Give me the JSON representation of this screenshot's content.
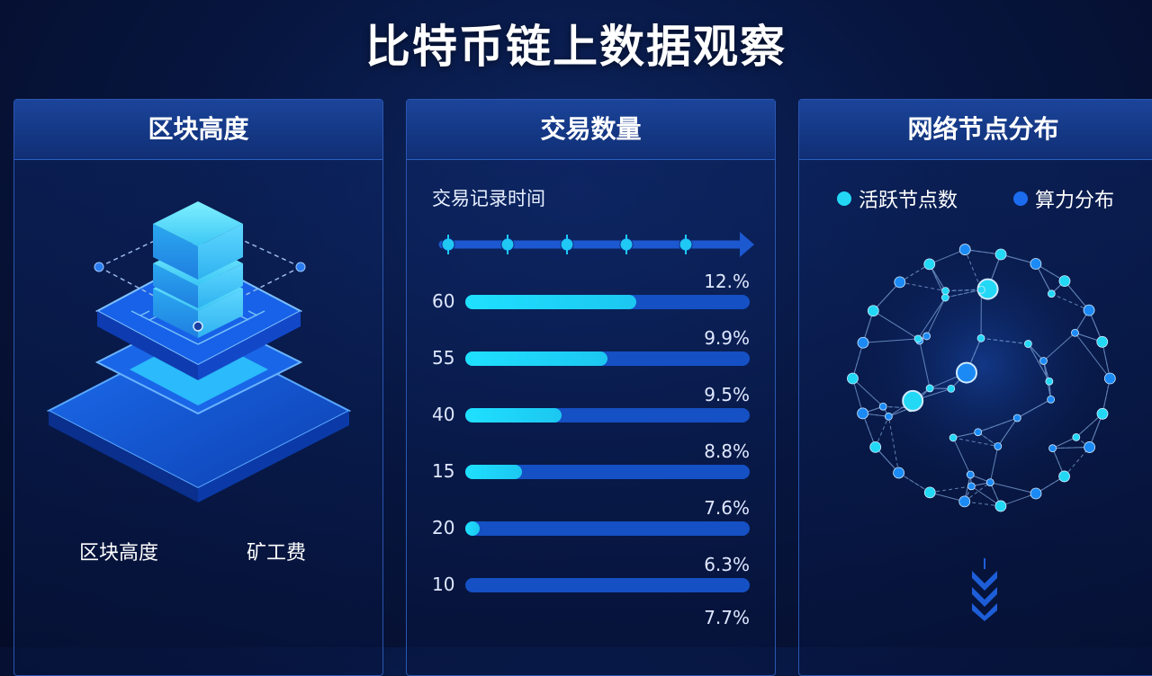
{
  "page": {
    "title": "比特币链上数据观察"
  },
  "panel_block": {
    "header": "区块高度",
    "labels": [
      "区块高度",
      "矿工费"
    ]
  },
  "panel_tx": {
    "header": "交易数量",
    "subtitle": "交易记录时间",
    "rows": [
      {
        "label": "60",
        "pct": "12.%",
        "fill": 0.6
      },
      {
        "label": "55",
        "pct": "9.9%",
        "fill": 0.5
      },
      {
        "label": "40",
        "pct": "9.5%",
        "fill": 0.34
      },
      {
        "label": "15",
        "pct": "8.8%",
        "fill": 0.2
      },
      {
        "label": "20",
        "pct": "7.6%",
        "fill": 0.05
      },
      {
        "label": "10",
        "pct": "6.3%",
        "fill": 0.0
      }
    ],
    "footer_pct": "7.7%"
  },
  "panel_nodes": {
    "header": "网络节点分布",
    "legend": [
      {
        "label": "活跃节点数",
        "color": "#22d8f5"
      },
      {
        "label": "算力分布",
        "color": "#1c6cf0"
      }
    ]
  },
  "colors": {
    "accent_cyan": "#1fe0ff",
    "accent_blue": "#1550c4"
  }
}
